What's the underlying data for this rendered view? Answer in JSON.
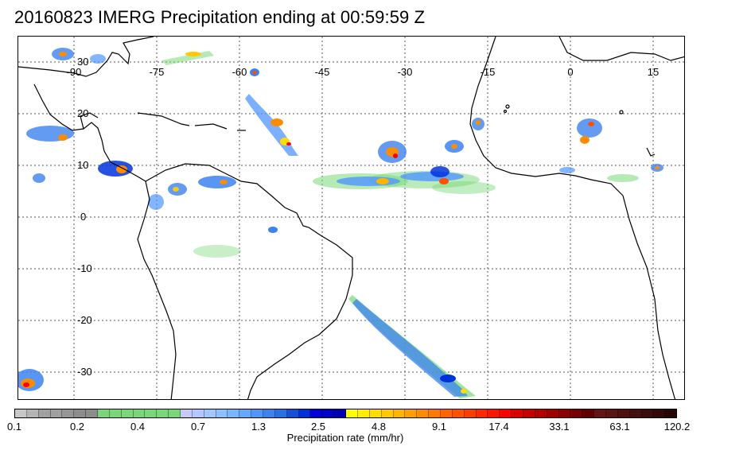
{
  "title": "20160823 IMERG Precipitation ending at 00:59:59 Z",
  "map": {
    "lon_labels": [
      "-90",
      "-75",
      "-60",
      "-45",
      "-30",
      "-15",
      "0",
      "15"
    ],
    "lat_labels": [
      "30",
      "20",
      "10",
      "0",
      "-10",
      "-20",
      "-30"
    ],
    "gridlines": "dotted",
    "coastline_color": "#000000"
  },
  "colorbar": {
    "label": "Precipitation rate (mm/hr)",
    "tick_labels": [
      "0.1",
      "0.2",
      "0.4",
      "0.7",
      "1.3",
      "2.5",
      "4.8",
      "9.1",
      "17.4",
      "33.1",
      "63.1",
      "120.2"
    ],
    "colors": [
      "#c8c8c8",
      "#b4b4b4",
      "#a0a0a0",
      "#a0a0a0",
      "#969696",
      "#8c8c8c",
      "#8c8c8c",
      "#78d878",
      "#78d878",
      "#78d878",
      "#78d878",
      "#78d878",
      "#78d878",
      "#78d878",
      "#c8c8ff",
      "#b4c8ff",
      "#a0c8ff",
      "#8cc0ff",
      "#78b4ff",
      "#64a8ff",
      "#5096ff",
      "#3c82f0",
      "#2870e6",
      "#1450dc",
      "#0032dc",
      "#0000dc",
      "#0000c8",
      "#0000b4",
      "#ffff00",
      "#ffee00",
      "#ffdc00",
      "#ffc800",
      "#ffb400",
      "#ffa000",
      "#ff8c00",
      "#ff7800",
      "#ff6400",
      "#ff5000",
      "#ff3c00",
      "#ff2800",
      "#ff1400",
      "#ff0000",
      "#dc0000",
      "#c80000",
      "#b40000",
      "#a00000",
      "#8c0000",
      "#780000",
      "#640000",
      "#641414",
      "#5a1414",
      "#501010",
      "#461010",
      "#3c0c0c",
      "#320808",
      "#280404"
    ]
  }
}
